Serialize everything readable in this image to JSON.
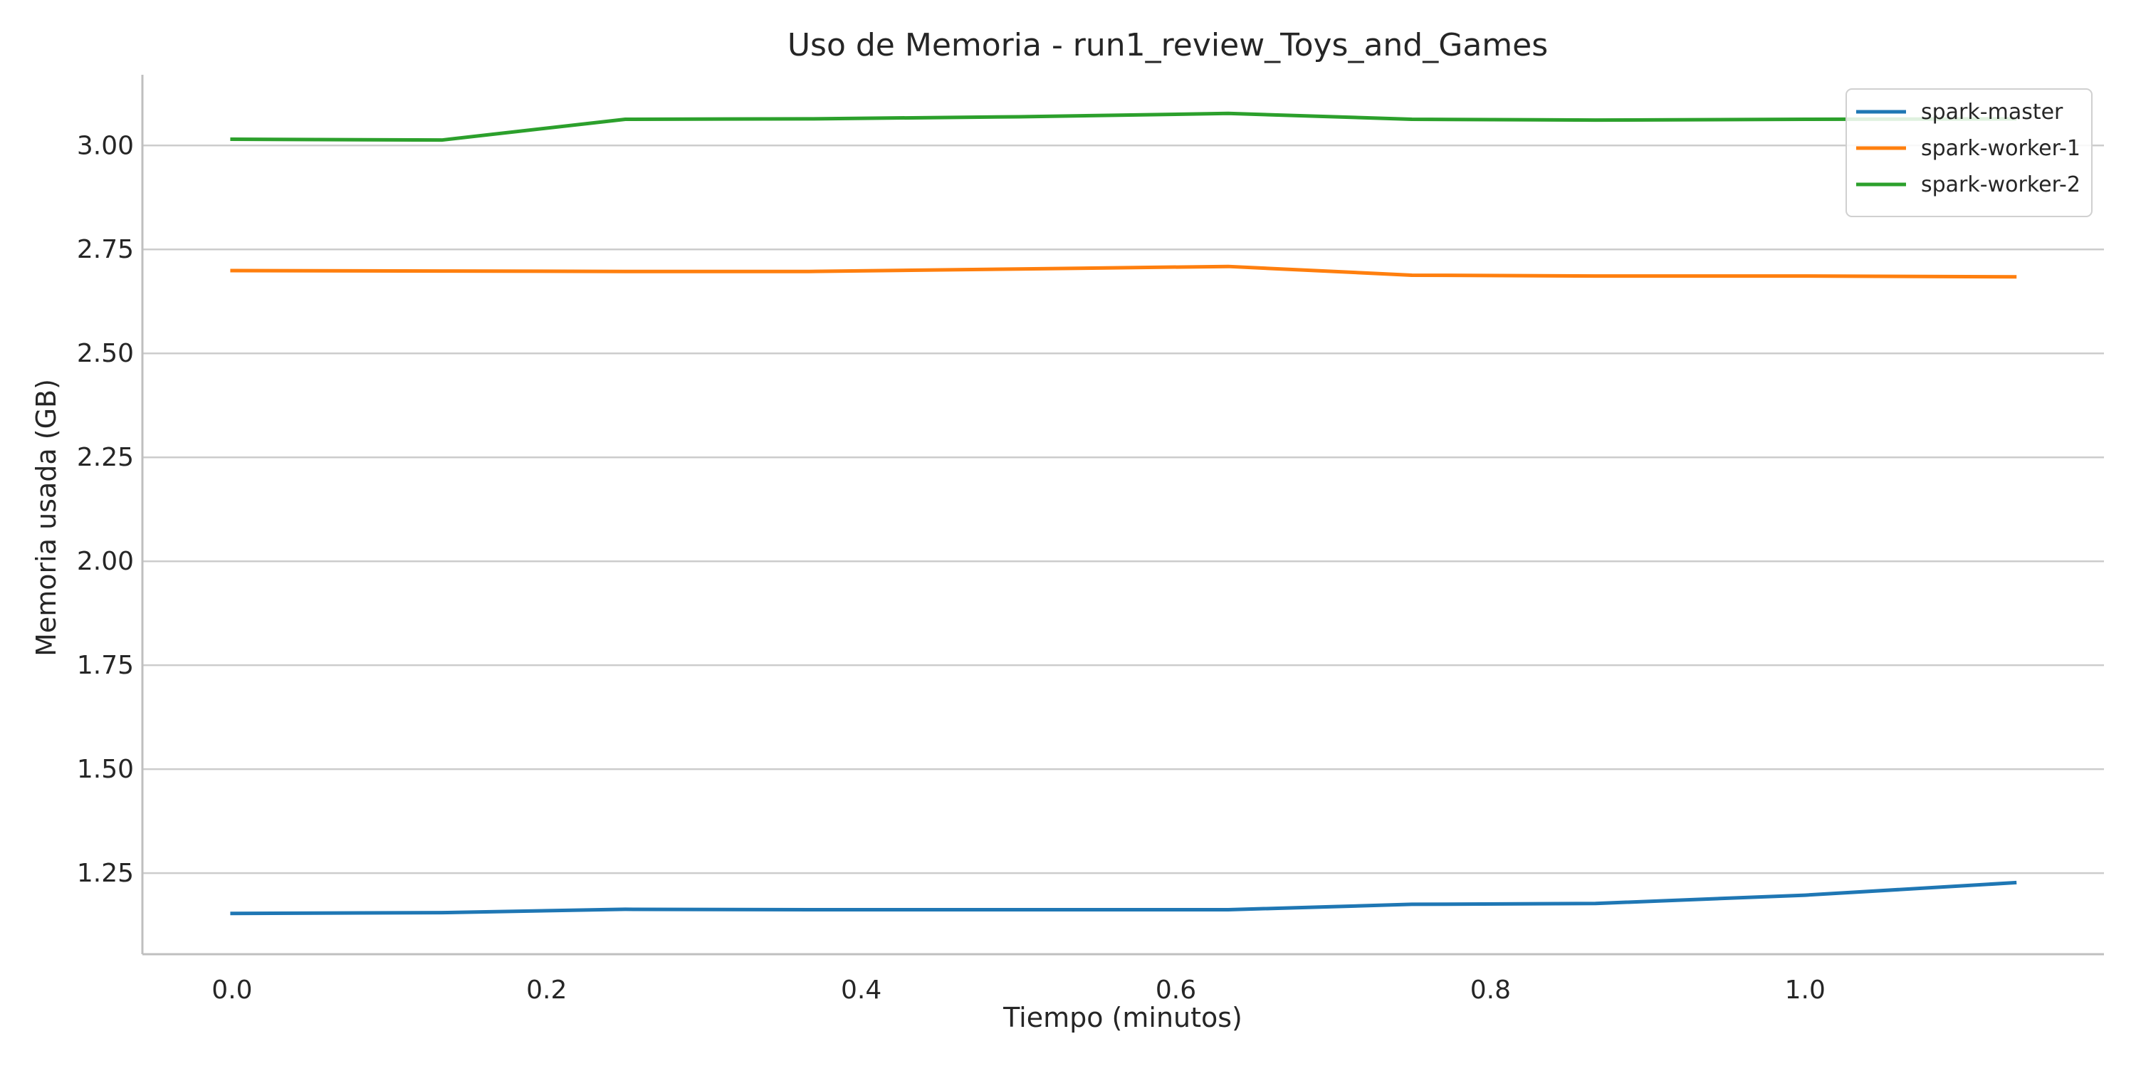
{
  "chart_data": {
    "type": "line",
    "title": "Uso de Memoria - run1_review_Toys_and_Games",
    "xlabel": "Tiempo (minutos)",
    "ylabel": "Memoria usada (GB)",
    "xlim": [
      -0.057,
      1.19
    ],
    "ylim": [
      1.055,
      3.17
    ],
    "xticks": [
      0.0,
      0.2,
      0.4,
      0.6,
      0.8,
      1.0
    ],
    "xtick_labels": [
      "0.0",
      "0.2",
      "0.4",
      "0.6",
      "0.8",
      "1.0"
    ],
    "yticks": [
      1.25,
      1.5,
      1.75,
      2.0,
      2.25,
      2.5,
      2.75,
      3.0
    ],
    "ytick_labels": [
      "1.25",
      "1.50",
      "1.75",
      "2.00",
      "2.25",
      "2.50",
      "2.75",
      "3.00"
    ],
    "grid": "horizontal",
    "legend_position": "top-right",
    "x": [
      0.0,
      0.1333,
      0.25,
      0.3667,
      0.5,
      0.6333,
      0.75,
      0.8667,
      1.0,
      1.1333
    ],
    "series": [
      {
        "name": "spark-master",
        "color": "#1f77b4",
        "values": [
          1.153,
          1.155,
          1.163,
          1.162,
          1.162,
          1.162,
          1.175,
          1.177,
          1.197,
          1.227
        ]
      },
      {
        "name": "spark-worker-1",
        "color": "#ff7f0e",
        "values": [
          2.699,
          2.698,
          2.697,
          2.697,
          2.703,
          2.709,
          2.688,
          2.686,
          2.686,
          2.684
        ]
      },
      {
        "name": "spark-worker-2",
        "color": "#2ca02c",
        "values": [
          3.015,
          3.013,
          3.063,
          3.064,
          3.069,
          3.077,
          3.063,
          3.061,
          3.063,
          3.064
        ]
      }
    ]
  }
}
